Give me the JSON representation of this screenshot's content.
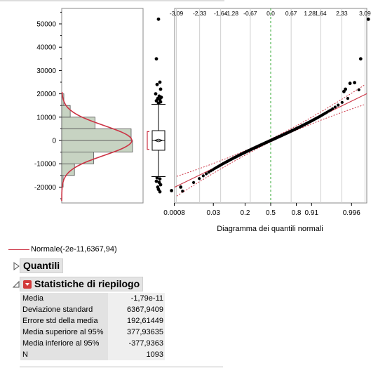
{
  "chart_data": {
    "type": "distribution",
    "y_axis": {
      "ticks": [
        50000,
        40000,
        30000,
        20000,
        10000,
        0,
        -10000,
        -20000
      ],
      "ylim": [
        -26000,
        56000
      ]
    },
    "histogram": {
      "bins": [
        {
          "from": -20000,
          "to": -15000,
          "density": 0.02
        },
        {
          "from": -15000,
          "to": -10000,
          "density": 0.18
        },
        {
          "from": -10000,
          "to": -5000,
          "density": 0.45
        },
        {
          "from": -5000,
          "to": 0,
          "density": 1.0
        },
        {
          "from": 0,
          "to": 5000,
          "density": 0.98
        },
        {
          "from": 5000,
          "to": 10000,
          "density": 0.47
        },
        {
          "from": 10000,
          "to": 15000,
          "density": 0.12
        },
        {
          "from": 15000,
          "to": 20000,
          "density": 0.03
        }
      ]
    },
    "boxplot": {
      "q1": -4200,
      "median": 0,
      "q3": 4200,
      "whisker_low": -15500,
      "whisker_high": 15500,
      "mean": 0,
      "outliers": [
        52000,
        35000,
        25000,
        24000,
        22000,
        20000,
        19000,
        18500,
        18000,
        17500,
        17000,
        16500,
        16000,
        -16000,
        -16500,
        -17500,
        -18000,
        -19000,
        -20000,
        -21000,
        -22000
      ]
    },
    "qq": {
      "quantile_ticks_top": [
        "-3,09",
        "-2,33",
        "-1,64",
        "-1,28",
        "-0,67",
        "0,0",
        "0,67",
        "1,28",
        "1,64",
        "2,33",
        "3,09"
      ],
      "quantile_ticks_top_values": [
        -3.09,
        -2.33,
        -1.64,
        -1.28,
        -0.67,
        0.0,
        0.67,
        1.28,
        1.64,
        2.33,
        3.09
      ],
      "prob_ticks_bottom": [
        "0.0008",
        "0.03",
        "0.2",
        "0.5",
        "0.8",
        "0.91",
        "0.996"
      ],
      "prob_ticks_bottom_values": [
        -3.16,
        -1.88,
        -0.84,
        0.0,
        0.84,
        1.34,
        2.65
      ],
      "xlabel": "Diagramma dei quantili normali",
      "fit_mean": 0,
      "fit_sd": 6367.94
    },
    "legend": {
      "series_name": "Normale(-2e-11,6367,94)",
      "color": "#cc3344"
    }
  },
  "sections": {
    "quantili": {
      "title": "Quantili"
    },
    "statistiche": {
      "title": "Statistiche di riepilogo",
      "rows": [
        {
          "label": "Media",
          "value": "-1,79e-11"
        },
        {
          "label": "Deviazione standard",
          "value": "6367,9409"
        },
        {
          "label": "Errore std della media",
          "value": "192,61449"
        },
        {
          "label": "Media superiore al 95%",
          "value": "377,93635"
        },
        {
          "label": "Media inferiore al 95%",
          "value": "-377,9363"
        },
        {
          "label": "N",
          "value": "1093"
        }
      ]
    }
  },
  "colors": {
    "fit_line": "#cc3344",
    "hist_fill": "#c7d3c2",
    "zero_line": "#33aa33"
  }
}
